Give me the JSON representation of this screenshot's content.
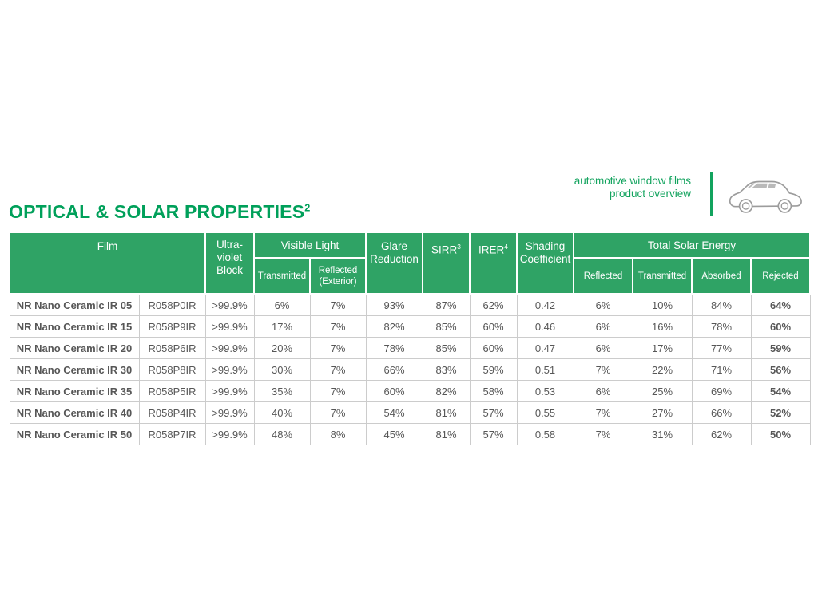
{
  "colors": {
    "accent_green": "#12a35e",
    "title_green": "#00a05a",
    "header_green": "#2fa365",
    "subheader_green": "#7cc296",
    "grid_gray": "#cccccc"
  },
  "masthead": {
    "tagline_line1": "automotive window films",
    "tagline_line2": "product overview",
    "icon": "car-icon"
  },
  "page_title": {
    "text": "OPTICAL & SOLAR PROPERTIES",
    "superscript": "2"
  },
  "table": {
    "groups": {
      "film": "Film",
      "uv_block_lines": [
        "Ultra-",
        "violet",
        "Block"
      ],
      "visible_light": "Visible Light",
      "glare_reduction": "Glare Reduction",
      "sirr": {
        "text": "SIRR",
        "sup": "3"
      },
      "irer": {
        "text": "IRER",
        "sup": "4"
      },
      "shading_coefficient": "Shading Coefficient",
      "total_solar_energy": "Total Solar Energy"
    },
    "subheaders": {
      "vl_transmitted": "Transmitted",
      "vl_reflected": "Reflected (Exterior)",
      "tse_reflected": "Reflected",
      "tse_transmitted": "Transmitted",
      "tse_absorbed": "Absorbed",
      "tse_rejected": "Rejected"
    },
    "rows": [
      {
        "film": "NR Nano Ceramic IR 05",
        "code": "R058P0IR",
        "uv_block": ">99.9%",
        "vl_transmitted": "6%",
        "vl_reflected": "7%",
        "glare_reduction": "93%",
        "sirr": "87%",
        "irer": "62%",
        "shading_coefficient": "0.42",
        "tse_reflected": "6%",
        "tse_transmitted": "10%",
        "tse_absorbed": "84%",
        "tse_rejected": "64%"
      },
      {
        "film": "NR Nano Ceramic IR 15",
        "code": "R058P9IR",
        "uv_block": ">99.9%",
        "vl_transmitted": "17%",
        "vl_reflected": "7%",
        "glare_reduction": "82%",
        "sirr": "85%",
        "irer": "60%",
        "shading_coefficient": "0.46",
        "tse_reflected": "6%",
        "tse_transmitted": "16%",
        "tse_absorbed": "78%",
        "tse_rejected": "60%"
      },
      {
        "film": "NR Nano Ceramic IR 20",
        "code": "R058P6IR",
        "uv_block": ">99.9%",
        "vl_transmitted": "20%",
        "vl_reflected": "7%",
        "glare_reduction": "78%",
        "sirr": "85%",
        "irer": "60%",
        "shading_coefficient": "0.47",
        "tse_reflected": "6%",
        "tse_transmitted": "17%",
        "tse_absorbed": "77%",
        "tse_rejected": "59%"
      },
      {
        "film": "NR Nano Ceramic IR 30",
        "code": "R058P8IR",
        "uv_block": ">99.9%",
        "vl_transmitted": "30%",
        "vl_reflected": "7%",
        "glare_reduction": "66%",
        "sirr": "83%",
        "irer": "59%",
        "shading_coefficient": "0.51",
        "tse_reflected": "7%",
        "tse_transmitted": "22%",
        "tse_absorbed": "71%",
        "tse_rejected": "56%"
      },
      {
        "film": "NR Nano Ceramic IR 35",
        "code": "R058P5IR",
        "uv_block": ">99.9%",
        "vl_transmitted": "35%",
        "vl_reflected": "7%",
        "glare_reduction": "60%",
        "sirr": "82%",
        "irer": "58%",
        "shading_coefficient": "0.53",
        "tse_reflected": "6%",
        "tse_transmitted": "25%",
        "tse_absorbed": "69%",
        "tse_rejected": "54%"
      },
      {
        "film": "NR Nano Ceramic IR 40",
        "code": "R058P4IR",
        "uv_block": ">99.9%",
        "vl_transmitted": "40%",
        "vl_reflected": "7%",
        "glare_reduction": "54%",
        "sirr": "81%",
        "irer": "57%",
        "shading_coefficient": "0.55",
        "tse_reflected": "7%",
        "tse_transmitted": "27%",
        "tse_absorbed": "66%",
        "tse_rejected": "52%"
      },
      {
        "film": "NR Nano Ceramic IR 50",
        "code": "R058P7IR",
        "uv_block": ">99.9%",
        "vl_transmitted": "48%",
        "vl_reflected": "8%",
        "glare_reduction": "45%",
        "sirr": "81%",
        "irer": "57%",
        "shading_coefficient": "0.58",
        "tse_reflected": "7%",
        "tse_transmitted": "31%",
        "tse_absorbed": "62%",
        "tse_rejected": "50%"
      }
    ]
  }
}
